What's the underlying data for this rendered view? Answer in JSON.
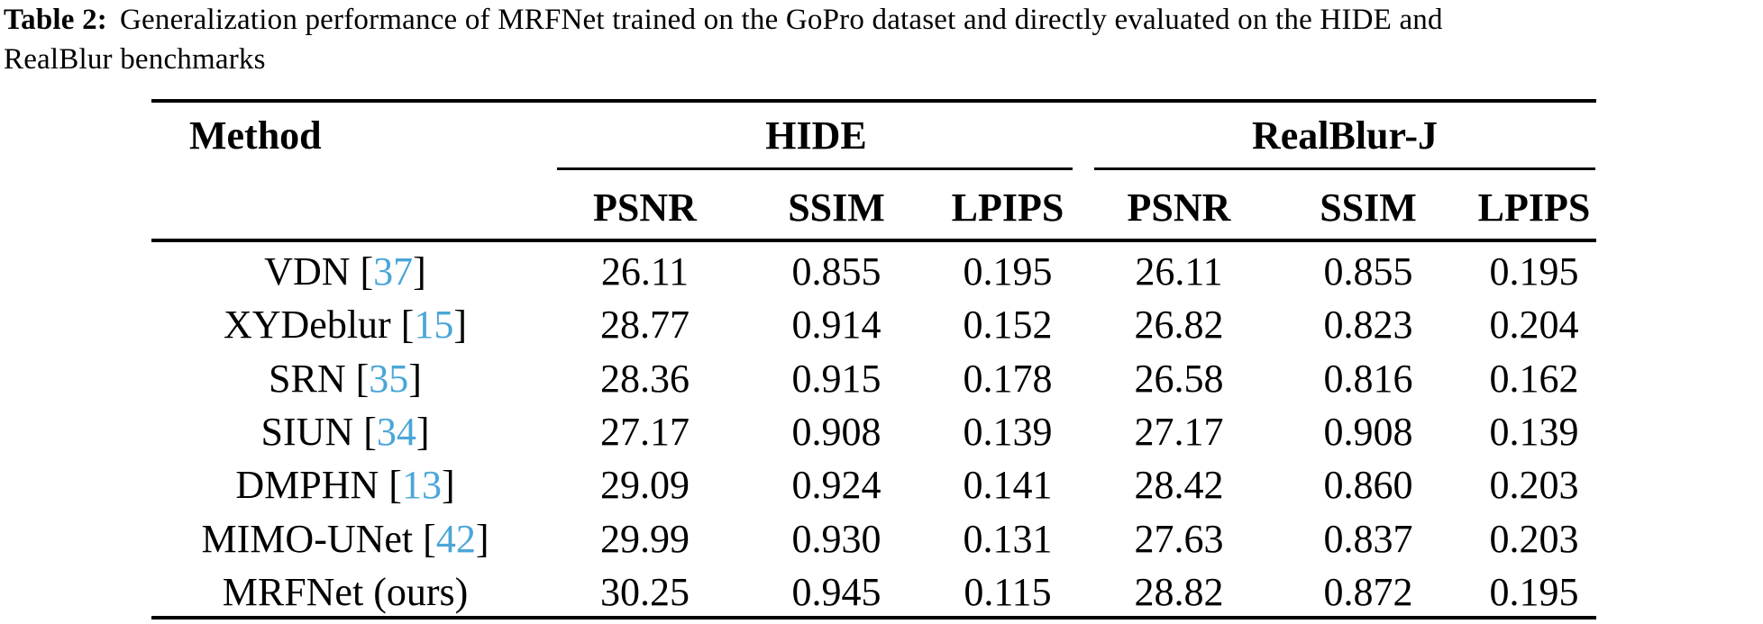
{
  "caption": {
    "label": "Table 2:",
    "line1": "Generalization performance of MRFNet trained on the GoPro dataset and directly evaluated on the HIDE and",
    "line2": "RealBlur benchmarks"
  },
  "table": {
    "method_header": "Method",
    "groups": [
      {
        "label": "HIDE"
      },
      {
        "label": "RealBlur-J"
      }
    ],
    "metric_headers": [
      "PSNR",
      "SSIM",
      "LPIPS",
      "PSNR",
      "SSIM",
      "LPIPS"
    ],
    "citation_color": "#4aa6d8",
    "cite_style": "color:#4aa6d8",
    "rows": [
      {
        "method": "VDN",
        "open": " [",
        "cite": "37",
        "close": "]",
        "values": [
          "26.11",
          "0.855",
          "0.195",
          "26.11",
          "0.855",
          "0.195"
        ]
      },
      {
        "method": "XYDeblur",
        "open": " [",
        "cite": "15",
        "close": "]",
        "values": [
          "28.77",
          "0.914",
          "0.152",
          "26.82",
          "0.823",
          "0.204"
        ]
      },
      {
        "method": "SRN",
        "open": " [",
        "cite": "35",
        "close": "]",
        "values": [
          "28.36",
          "0.915",
          "0.178",
          "26.58",
          "0.816",
          "0.162"
        ]
      },
      {
        "method": "SIUN",
        "open": " [",
        "cite": "34",
        "close": "]",
        "values": [
          "27.17",
          "0.908",
          "0.139",
          "27.17",
          "0.908",
          "0.139"
        ]
      },
      {
        "method": "DMPHN",
        "open": " [",
        "cite": "13",
        "close": "]",
        "values": [
          "29.09",
          "0.924",
          "0.141",
          "28.42",
          "0.860",
          "0.203"
        ]
      },
      {
        "method": "MIMO-UNet",
        "open": " [",
        "cite": "42",
        "close": "]",
        "values": [
          "29.99",
          "0.930",
          "0.131",
          "27.63",
          "0.837",
          "0.203"
        ]
      },
      {
        "method": "MRFNet (ours)",
        "values": [
          "30.25",
          "0.945",
          "0.115",
          "28.82",
          "0.872",
          "0.195"
        ]
      }
    ]
  }
}
